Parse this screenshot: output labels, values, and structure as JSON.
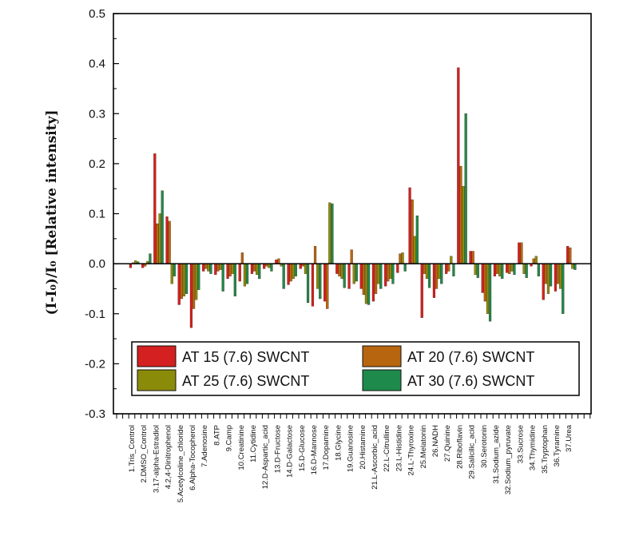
{
  "chart_data": {
    "type": "bar",
    "ylabel": "(I-I₀)/I₀ [Relative intensity]",
    "ylim": [
      -0.3,
      0.5
    ],
    "yticks": [
      "-0.3",
      "-0.2",
      "-0.1",
      "0.0",
      "0.1",
      "0.2",
      "0.3",
      "0.4",
      "0.5"
    ],
    "grid": false,
    "legend_position": "lower-center",
    "categories": [
      "1.Tris_Control",
      "2.DMSO_Control",
      "3.17-alpha-Estradiol",
      "4.2,4-Dinitrophenol",
      "5.Acetylcoline_chloride",
      "6.Alpha-Tocopherol",
      "7.Adenosine",
      "8.ATP",
      "9.Camp",
      "10.Creatinine",
      "11.Cytidine",
      "12.D-Aspartic_acid",
      "13.D-Fructose",
      "14.D-Galactose",
      "15.D-Glucose",
      "16.D-Mannose",
      "17.Dopamine",
      "18.Glycine",
      "19.Guanosine",
      "20.Histamine",
      "21.L-Ascorbic_acid",
      "22.L-Citrulline",
      "23.L-Histidine",
      "24.L-Thyroxine",
      "25.Melatonin",
      "26.NADH",
      "27.Quinine",
      "28.Riboflavin",
      "29.Salicilic_acid",
      "30.Serotonin",
      "31.Sodium_azide",
      "32.Sodium_pyruvate",
      "33.Sucrose",
      "34.Thymidine",
      "35.Tryptophan",
      "36.Tyramine",
      "37.Urea"
    ],
    "series": [
      {
        "name": "AT 15 (7.6) SWCNT",
        "color": "#d42020",
        "values": [
          -0.008,
          -0.008,
          0.22,
          0.094,
          -0.082,
          -0.128,
          -0.015,
          -0.022,
          -0.03,
          -0.035,
          -0.02,
          -0.01,
          0.008,
          -0.042,
          -0.01,
          -0.085,
          -0.075,
          -0.02,
          -0.05,
          -0.05,
          -0.075,
          -0.045,
          -0.018,
          0.152,
          -0.108,
          -0.068,
          -0.02,
          0.392,
          0.025,
          -0.058,
          -0.025,
          -0.018,
          0.042,
          -0.005,
          -0.072,
          -0.055,
          0.035
        ]
      },
      {
        "name": "AT 20 (7.6) SWCNT",
        "color": "#b8650f",
        "values": [
          0.002,
          -0.005,
          0.08,
          0.085,
          -0.07,
          -0.09,
          -0.01,
          -0.015,
          -0.025,
          0.022,
          -0.015,
          -0.005,
          0.01,
          -0.035,
          -0.005,
          0.035,
          -0.09,
          -0.025,
          0.028,
          -0.062,
          -0.06,
          -0.035,
          0.02,
          0.128,
          -0.02,
          -0.05,
          -0.015,
          0.195,
          0.025,
          -0.075,
          -0.02,
          -0.02,
          0.042,
          0.01,
          -0.04,
          -0.04,
          0.032
        ]
      },
      {
        "name": "AT 25 (7.6) SWCNT",
        "color": "#8b8b0a",
        "values": [
          0.006,
          0.005,
          0.1,
          -0.04,
          -0.065,
          -0.072,
          -0.015,
          -0.012,
          -0.02,
          -0.045,
          -0.022,
          -0.008,
          -0.005,
          -0.03,
          -0.02,
          -0.05,
          0.122,
          -0.03,
          -0.04,
          -0.08,
          -0.04,
          -0.03,
          0.022,
          0.055,
          -0.03,
          -0.03,
          0.015,
          0.155,
          -0.022,
          -0.1,
          -0.025,
          -0.015,
          -0.02,
          0.015,
          -0.06,
          -0.05,
          -0.01
        ]
      },
      {
        "name": "AT 30 (7.6) SWCNT",
        "color": "#1e8a4c",
        "values": [
          0.004,
          0.02,
          0.146,
          -0.025,
          -0.06,
          -0.052,
          -0.02,
          -0.055,
          -0.065,
          -0.04,
          -0.03,
          -0.015,
          -0.05,
          -0.025,
          -0.078,
          -0.07,
          0.12,
          -0.048,
          -0.035,
          -0.082,
          -0.05,
          -0.04,
          -0.015,
          0.096,
          -0.048,
          -0.04,
          -0.025,
          0.3,
          -0.028,
          -0.115,
          -0.03,
          -0.022,
          -0.028,
          -0.025,
          -0.045,
          -0.1,
          -0.012
        ]
      }
    ]
  }
}
